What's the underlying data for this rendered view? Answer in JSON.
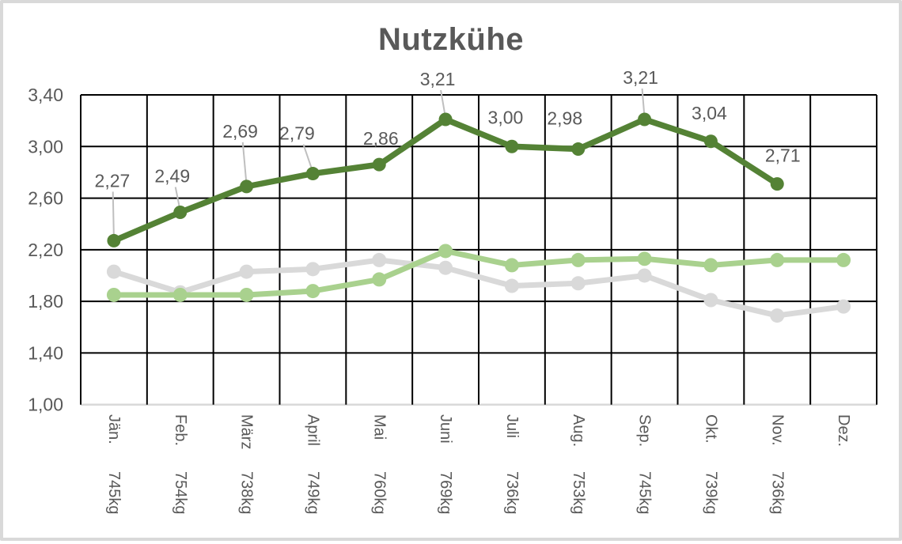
{
  "chart_data": {
    "type": "line",
    "title": "Nutzkühe",
    "legend": "none",
    "grid": true,
    "ylim": [
      1.0,
      3.4
    ],
    "y_ticks": [
      {
        "value": 3.4,
        "label": "3,40"
      },
      {
        "value": 3.0,
        "label": "3,00"
      },
      {
        "value": 2.6,
        "label": "2,60"
      },
      {
        "value": 2.2,
        "label": "2,20"
      },
      {
        "value": 1.8,
        "label": "1,80"
      },
      {
        "value": 1.4,
        "label": "1,40"
      },
      {
        "value": 1.0,
        "label": "1,00"
      }
    ],
    "categories": [
      {
        "month": "Jän.",
        "weight": "745kg"
      },
      {
        "month": "Feb.",
        "weight": "754kg"
      },
      {
        "month": "März",
        "weight": "738kg"
      },
      {
        "month": "April",
        "weight": "749kg"
      },
      {
        "month": "Mai",
        "weight": "760kg"
      },
      {
        "month": "Juni",
        "weight": "769kg"
      },
      {
        "month": "Juli",
        "weight": "736kg"
      },
      {
        "month": "Aug.",
        "weight": "753kg"
      },
      {
        "month": "Sep.",
        "weight": "745kg"
      },
      {
        "month": "Okt.",
        "weight": "739kg"
      },
      {
        "month": "Nov.",
        "weight": "736kg"
      },
      {
        "month": "Dez.",
        "weight": ""
      }
    ],
    "series": [
      {
        "name": "dark-green-labeled-series",
        "color": "#548235",
        "values": [
          2.27,
          2.49,
          2.69,
          2.79,
          2.86,
          3.21,
          3.0,
          2.98,
          3.21,
          3.04,
          2.71,
          null
        ],
        "labels": [
          "2,27",
          "2,49",
          "2,69",
          "2,79",
          "2,86",
          "3,21",
          "3,00",
          "2,98",
          "3,21",
          "3,04",
          "2,71"
        ]
      },
      {
        "name": "light-green-series",
        "color": "#a9d18e",
        "values": [
          1.85,
          1.85,
          1.85,
          1.88,
          1.97,
          2.19,
          2.08,
          2.12,
          2.13,
          2.08,
          2.12,
          2.12
        ],
        "labels": []
      },
      {
        "name": "gray-series",
        "color": "#d9d9d9",
        "values": [
          2.03,
          1.87,
          2.03,
          2.05,
          2.12,
          2.06,
          1.92,
          1.94,
          2.0,
          1.81,
          1.69,
          1.76
        ],
        "labels": []
      }
    ]
  },
  "palette": {
    "grid": "#000000",
    "axis_line": "#d9d9d9",
    "tick_text": "#595959",
    "data_label_text": "#595959",
    "leader_line": "#bfbfbf",
    "frame_border": "#d9d9d9",
    "title_text": "#595959"
  }
}
